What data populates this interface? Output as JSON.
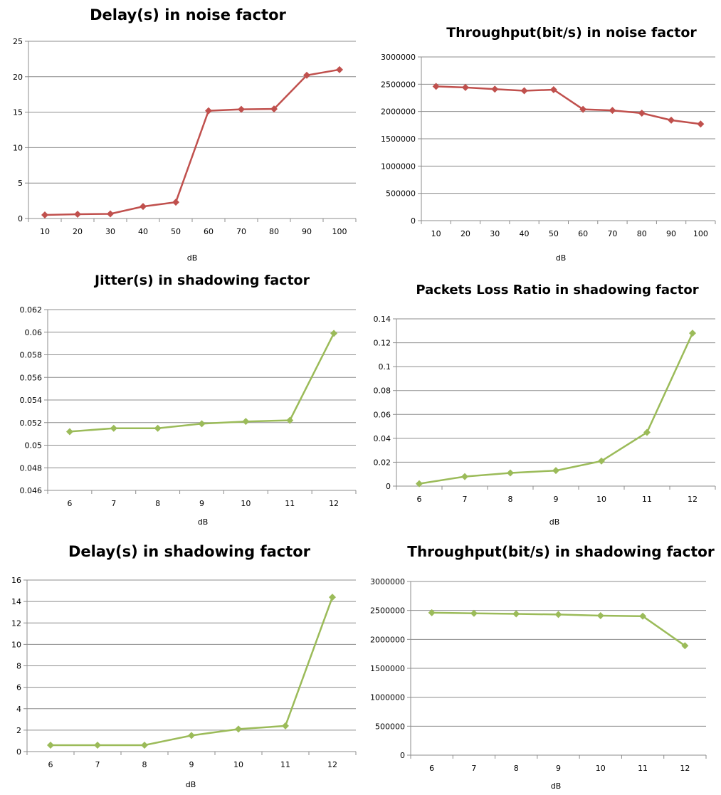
{
  "colors": {
    "red_series": "#c0504d",
    "green_series": "#9bbb59",
    "gridline": "#8c8c8c"
  },
  "chart_data": [
    {
      "type": "line",
      "title": "Delay(s) in noise factor",
      "xlabel": "dB",
      "ylabel": "",
      "categories": [
        "10",
        "20",
        "30",
        "40",
        "50",
        "60",
        "70",
        "80",
        "90",
        "100"
      ],
      "y_ticks": [
        "0",
        "5",
        "10",
        "15",
        "20",
        "25"
      ],
      "ylim": [
        0,
        25
      ],
      "grid": true,
      "color": "#c0504d",
      "marker": "diamond",
      "values": [
        0.5,
        0.6,
        0.65,
        1.7,
        2.3,
        15.2,
        15.4,
        15.45,
        20.2,
        21.0
      ]
    },
    {
      "type": "line",
      "title": "Throughput(bit/s) in noise factor",
      "xlabel": "dB",
      "ylabel": "",
      "categories": [
        "10",
        "20",
        "30",
        "40",
        "50",
        "60",
        "70",
        "80",
        "90",
        "100"
      ],
      "y_ticks": [
        "0",
        "500000",
        "1000000",
        "1500000",
        "2000000",
        "2500000",
        "3000000"
      ],
      "ylim": [
        0,
        3000000
      ],
      "grid": true,
      "color": "#c0504d",
      "marker": "diamond",
      "values": [
        2460000,
        2440000,
        2410000,
        2380000,
        2400000,
        2040000,
        2020000,
        1970000,
        1840000,
        1770000
      ]
    },
    {
      "type": "line",
      "title": "Jitter(s) in shadowing factor",
      "xlabel": "dB",
      "ylabel": "",
      "categories": [
        "6",
        "7",
        "8",
        "9",
        "10",
        "11",
        "12"
      ],
      "y_ticks": [
        "0.046",
        "0.048",
        "0.05",
        "0.052",
        "0.054",
        "0.056",
        "0.058",
        "0.06",
        "0.062"
      ],
      "ylim": [
        0.046,
        0.062
      ],
      "grid": true,
      "color": "#9bbb59",
      "marker": "diamond",
      "values": [
        0.0512,
        0.0515,
        0.0515,
        0.0519,
        0.0521,
        0.0522,
        0.0599
      ]
    },
    {
      "type": "line",
      "title": "Packets Loss Ratio in shadowing factor",
      "xlabel": "dB",
      "ylabel": "",
      "categories": [
        "6",
        "7",
        "8",
        "9",
        "10",
        "11",
        "12"
      ],
      "y_ticks": [
        "0",
        "0.02",
        "0.04",
        "0.06",
        "0.08",
        "0.1",
        "0.12",
        "0.14"
      ],
      "ylim": [
        0,
        0.14
      ],
      "grid": true,
      "color": "#9bbb59",
      "marker": "diamond",
      "values": [
        0.002,
        0.008,
        0.011,
        0.013,
        0.021,
        0.045,
        0.128
      ]
    },
    {
      "type": "line",
      "title": "Delay(s) in shadowing factor",
      "xlabel": "dB",
      "ylabel": "",
      "categories": [
        "6",
        "7",
        "8",
        "9",
        "10",
        "11",
        "12"
      ],
      "y_ticks": [
        "0",
        "2",
        "4",
        "6",
        "8",
        "10",
        "12",
        "14",
        "16"
      ],
      "ylim": [
        0,
        16
      ],
      "grid": true,
      "color": "#9bbb59",
      "marker": "diamond",
      "values": [
        0.6,
        0.6,
        0.6,
        1.5,
        2.1,
        2.4,
        14.4
      ]
    },
    {
      "type": "line",
      "title": "Throughput(bit/s) in shadowing factor",
      "xlabel": "dB",
      "ylabel": "",
      "categories": [
        "6",
        "7",
        "8",
        "9",
        "10",
        "11",
        "12"
      ],
      "y_ticks": [
        "0",
        "500000",
        "1000000",
        "1500000",
        "2000000",
        "2500000",
        "3000000"
      ],
      "ylim": [
        0,
        3000000
      ],
      "grid": true,
      "color": "#9bbb59",
      "marker": "diamond",
      "values": [
        2460000,
        2450000,
        2440000,
        2430000,
        2410000,
        2400000,
        1890000
      ]
    }
  ]
}
